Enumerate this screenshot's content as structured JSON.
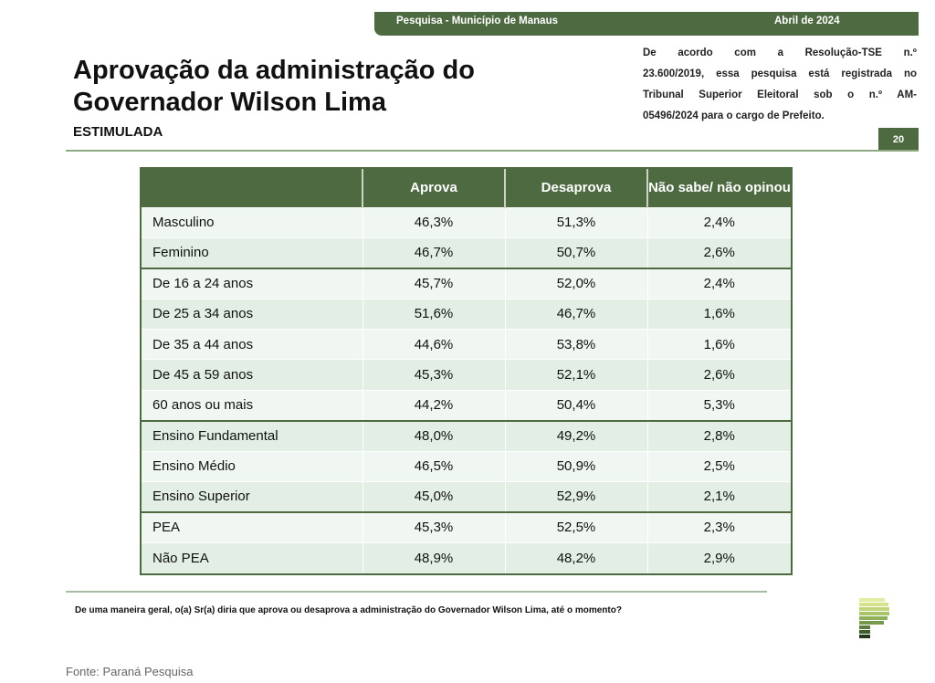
{
  "header": {
    "survey": "Pesquisa - Município de Manaus",
    "date": "Abril de 2024",
    "page": "20"
  },
  "title": {
    "line1": "Aprovação da administração do",
    "line2": "Governador Wilson Lima",
    "subtitle": "ESTIMULADA"
  },
  "legal": [
    "De acordo com a Resolução-TSE n.º",
    "23.600/2019, essa pesquisa está registrada no",
    "Tribunal Superior Eleitoral sob o n.º AM-",
    "05496/2024 para o cargo de Prefeito."
  ],
  "table": {
    "columns": [
      "",
      "Aprova",
      "Desaprova",
      "Não sabe/ não opinou"
    ],
    "rows": [
      [
        "Masculino",
        "46,3%",
        "51,3%",
        "2,4%"
      ],
      [
        "Feminino",
        "46,7%",
        "50,7%",
        "2,6%"
      ],
      [
        "De 16 a 24 anos",
        "45,7%",
        "52,0%",
        "2,4%"
      ],
      [
        "De 25 a 34 anos",
        "51,6%",
        "46,7%",
        "1,6%"
      ],
      [
        "De 35 a 44 anos",
        "44,6%",
        "53,8%",
        "1,6%"
      ],
      [
        "De 45 a 59 anos",
        "45,3%",
        "52,1%",
        "2,6%"
      ],
      [
        "60 anos ou mais",
        "44,2%",
        "50,4%",
        "5,3%"
      ],
      [
        "Ensino Fundamental",
        "48,0%",
        "49,2%",
        "2,8%"
      ],
      [
        "Ensino Médio",
        "46,5%",
        "50,9%",
        "2,5%"
      ],
      [
        "Ensino Superior",
        "45,0%",
        "52,9%",
        "2,1%"
      ],
      [
        "PEA",
        "45,3%",
        "52,5%",
        "2,3%"
      ],
      [
        "Não PEA",
        "48,9%",
        "48,2%",
        "2,9%"
      ]
    ],
    "group_starts": [
      2,
      7,
      10
    ]
  },
  "question": "De uma maneira geral, o(a) Sr(a) diria que aprova ou desaprova a administração do Governador Wilson Lima, até o momento?",
  "source": "Fonte: Paraná Pesquisa",
  "colors": {
    "brand": "#4e6a41"
  }
}
